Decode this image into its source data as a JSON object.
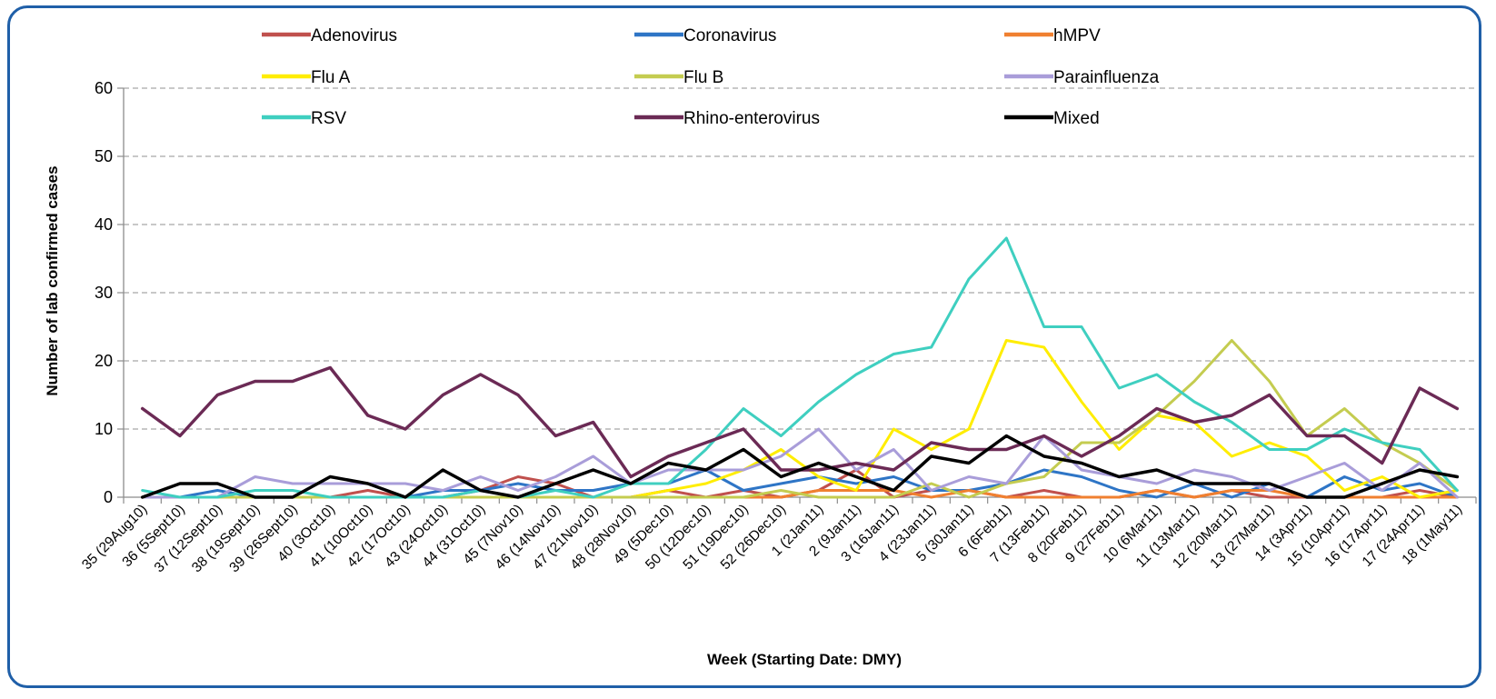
{
  "chart_data": {
    "type": "line",
    "title": "",
    "xlabel": "Week (Starting Date: DMY)",
    "ylabel": "Number of lab confirmed cases",
    "ylim": [
      0,
      60
    ],
    "yticks": [
      "0",
      "10",
      "20",
      "30",
      "40",
      "50",
      "60"
    ],
    "grid": "horizontal dashed",
    "legend_placement": "top",
    "categories": [
      "35 (29Aug10)",
      "36 (5Sept10)",
      "37 (12Sept10)",
      "38 (19Sept10)",
      "39 (26Sept10)",
      "40 (3Oct10)",
      "41 (10Oct10)",
      "42 (17Oct10)",
      "43 (24Oct10)",
      "44 (31Oct10)",
      "45 (7Nov10)",
      "46 (14Nov10)",
      "47 (21Nov10)",
      "48 (28Nov10)",
      "49 (5Dec10)",
      "50 (12Dec10)",
      "51 (19Dec10)",
      "52 (26Dec10)",
      "1 (2Jan11)",
      "2 (9Jan11)",
      "3 (16Jan11)",
      "4 (23Jan11)",
      "5 (30Jan11)",
      "6 (6Feb11)",
      "7 (13Feb11)",
      "8 (20Feb11)",
      "9 (27Feb11)",
      "10 (6Mar11)",
      "11 (13Mar11)",
      "12 (20Mar11)",
      "13 (27Mar11)",
      "14 (3Apr11)",
      "15 (10Apr11)",
      "16 (17Apr11)",
      "17 (24Apr11)",
      "18 (1May11)"
    ],
    "series": [
      {
        "name": "Adenovirus",
        "color": "#c0504d",
        "width": 3,
        "values": [
          0,
          0,
          0,
          0,
          0,
          0,
          1,
          0,
          0,
          1,
          3,
          2,
          0,
          0,
          1,
          0,
          1,
          0,
          1,
          4,
          0,
          1,
          1,
          0,
          1,
          0,
          0,
          1,
          0,
          1,
          0,
          0,
          0,
          0,
          1,
          0
        ]
      },
      {
        "name": "Coronavirus",
        "color": "#2e75c6",
        "width": 3,
        "values": [
          0,
          0,
          1,
          0,
          0,
          0,
          0,
          0,
          1,
          1,
          2,
          1,
          1,
          2,
          2,
          4,
          1,
          2,
          3,
          2,
          3,
          1,
          1,
          2,
          4,
          3,
          1,
          0,
          2,
          0,
          2,
          0,
          3,
          1,
          2,
          0
        ]
      },
      {
        "name": "hMPV",
        "color": "#f08030",
        "width": 3,
        "values": [
          0,
          0,
          0,
          0,
          0,
          0,
          0,
          0,
          0,
          0,
          0,
          0,
          0,
          0,
          0,
          0,
          0,
          0,
          1,
          1,
          1,
          0,
          1,
          0,
          0,
          0,
          0,
          1,
          0,
          1,
          1,
          0,
          0,
          0,
          0,
          0
        ]
      },
      {
        "name": "Flu A",
        "color": "#ffed00",
        "width": 3,
        "values": [
          0,
          0,
          0,
          0,
          0,
          0,
          0,
          0,
          0,
          0,
          0,
          0,
          0,
          0,
          1,
          2,
          4,
          7,
          3,
          1,
          10,
          7,
          10,
          23,
          22,
          14,
          7,
          12,
          11,
          6,
          8,
          6,
          1,
          3,
          0,
          1
        ]
      },
      {
        "name": "Flu B",
        "color": "#c4cc50",
        "width": 3,
        "values": [
          0,
          0,
          0,
          0,
          0,
          0,
          0,
          0,
          0,
          0,
          0,
          0,
          0,
          0,
          0,
          0,
          0,
          1,
          0,
          0,
          0,
          2,
          0,
          2,
          3,
          8,
          8,
          12,
          17,
          23,
          17,
          9,
          13,
          8,
          5,
          1
        ]
      },
      {
        "name": "Parainfluenza",
        "color": "#a99dd9",
        "width": 3,
        "values": [
          0,
          0,
          0,
          3,
          2,
          2,
          2,
          2,
          1,
          3,
          1,
          3,
          6,
          2,
          4,
          4,
          4,
          6,
          10,
          4,
          7,
          1,
          3,
          2,
          9,
          4,
          3,
          2,
          4,
          3,
          1,
          3,
          5,
          1,
          5,
          0
        ]
      },
      {
        "name": "RSV",
        "color": "#3fcfc0",
        "width": 3,
        "values": [
          1,
          0,
          0,
          1,
          1,
          0,
          0,
          0,
          0,
          1,
          0,
          1,
          0,
          2,
          2,
          7,
          13,
          9,
          14,
          18,
          21,
          22,
          32,
          38,
          25,
          25,
          16,
          18,
          14,
          11,
          7,
          7,
          10,
          8,
          7,
          1
        ]
      },
      {
        "name": "Rhino-enterovirus",
        "color": "#6b2a55",
        "width": 3.5,
        "values": [
          13,
          9,
          15,
          17,
          17,
          19,
          12,
          10,
          15,
          18,
          15,
          9,
          11,
          3,
          6,
          8,
          10,
          4,
          4,
          5,
          4,
          8,
          7,
          7,
          9,
          6,
          9,
          13,
          11,
          12,
          15,
          9,
          9,
          5,
          16,
          13
        ]
      },
      {
        "name": "Mixed",
        "color": "#000000",
        "width": 3.5,
        "values": [
          0,
          2,
          2,
          0,
          0,
          3,
          2,
          0,
          4,
          1,
          0,
          2,
          4,
          2,
          5,
          4,
          7,
          3,
          5,
          3,
          1,
          6,
          5,
          9,
          6,
          5,
          3,
          4,
          2,
          2,
          2,
          0,
          0,
          2,
          4,
          3
        ]
      }
    ]
  }
}
